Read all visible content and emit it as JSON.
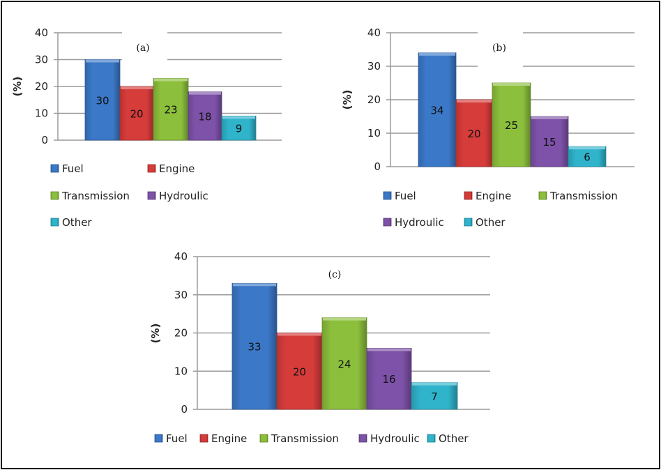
{
  "chart_data": [
    {
      "type": "bar",
      "title": "(a)",
      "ylabel": "(%)",
      "ylim": [
        0,
        40
      ],
      "yticks": [
        "0",
        "10",
        "20",
        "30",
        "40"
      ],
      "grid": true,
      "legend_position": "bottom",
      "categories": [
        "Fuel",
        "Engine",
        "Transmission",
        "Hydroulic",
        "Other"
      ],
      "values": [
        30,
        20,
        23,
        18,
        9
      ],
      "data_labels": [
        "30",
        "20",
        "23",
        "18",
        "9"
      ]
    },
    {
      "type": "bar",
      "title": "(b)",
      "ylabel": "(%)",
      "ylim": [
        0,
        40
      ],
      "yticks": [
        "0",
        "10",
        "20",
        "30",
        "40"
      ],
      "grid": true,
      "legend_position": "bottom",
      "categories": [
        "Fuel",
        "Engine",
        "Transmission",
        "Hydroulic",
        "Other"
      ],
      "values": [
        34,
        20,
        25,
        15,
        6
      ],
      "data_labels": [
        "34",
        "20",
        "25",
        "15",
        "6"
      ]
    },
    {
      "type": "bar",
      "title": "(c)",
      "ylabel": "(%)",
      "ylim": [
        0,
        40
      ],
      "yticks": [
        "0",
        "10",
        "20",
        "30",
        "40"
      ],
      "grid": true,
      "legend_position": "bottom",
      "categories": [
        "Fuel",
        "Engine",
        "Transmission",
        "Hydroulic",
        "Other"
      ],
      "values": [
        33,
        20,
        24,
        16,
        7
      ],
      "data_labels": [
        "33",
        "20",
        "24",
        "16",
        "7"
      ]
    }
  ],
  "colors": {
    "Fuel": "#3b78c8",
    "Engine": "#d63c3a",
    "Transmission": "#8cbf3c",
    "Hydroulic": "#7d52a8",
    "Other": "#2fb4cc"
  }
}
